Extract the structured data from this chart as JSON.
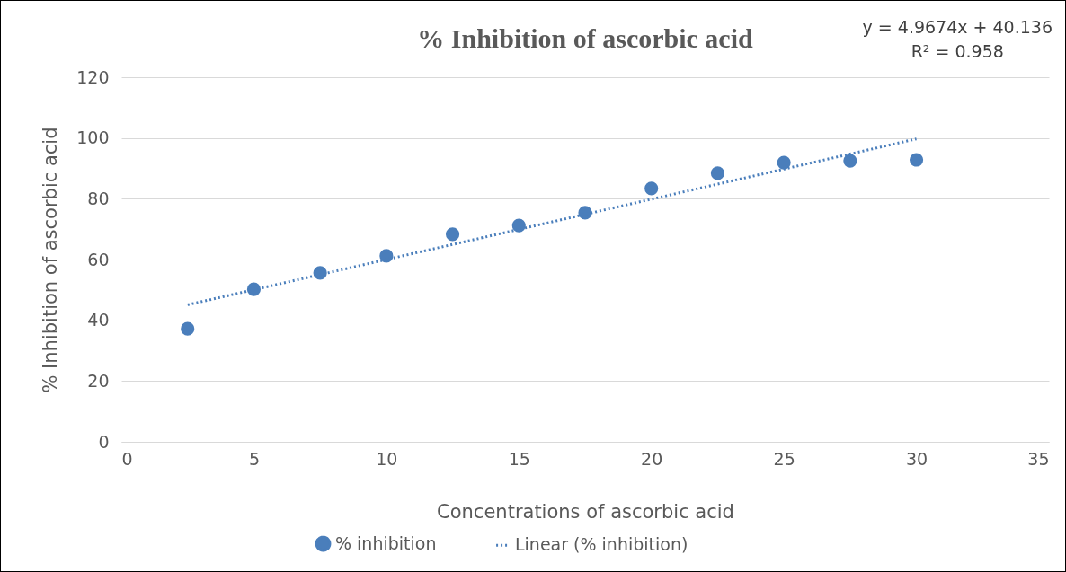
{
  "chart_data": {
    "type": "scatter",
    "title": "% Inhibition of ascorbic acid",
    "xlabel": "Concentrations of ascorbic acid",
    "ylabel": "% Inhibition of ascorbic acid",
    "annotations": [
      "y = 4.9674x + 40.136",
      "R² = 0.958"
    ],
    "xlim": [
      0,
      35
    ],
    "xticks": [
      0,
      5,
      10,
      15,
      20,
      25,
      30,
      35
    ],
    "ylim": [
      0,
      120
    ],
    "yticks": [
      0,
      20,
      40,
      60,
      80,
      100,
      120
    ],
    "grid": "y",
    "legend": "bottom",
    "series": [
      {
        "name": "% inhibition",
        "marker": "circle",
        "color": "#4a7ebb",
        "x": [
          2.5,
          5,
          7.5,
          10,
          12.5,
          15,
          17.5,
          20,
          22.5,
          25,
          27.5,
          30
        ],
        "values": [
          37.2,
          50.2,
          55.6,
          61.2,
          68.3,
          71.2,
          75.4,
          83.4,
          88.4,
          91.9,
          92.5,
          92.8
        ]
      },
      {
        "name": "Linear (% inhibition)",
        "type": "line",
        "line_style": "dotted",
        "color": "#4a7ebb",
        "x": [
          2.5,
          30
        ],
        "values": [
          45.1,
          99.7
        ]
      }
    ]
  }
}
